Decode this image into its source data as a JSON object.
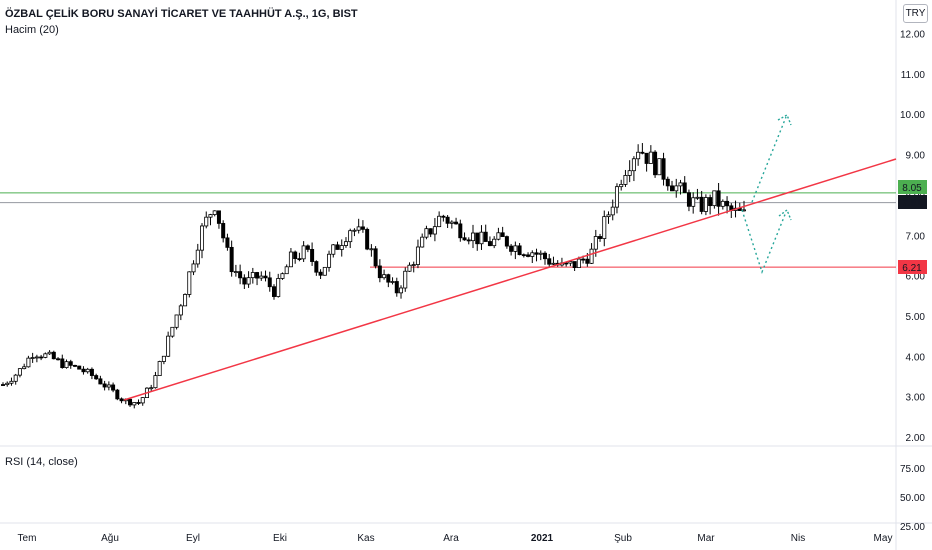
{
  "header": {
    "symbol_title": "ÖZBAL ÇELİK BORU SANAYİ TİCARET VE TAAHHÜT A.Ş., 1G, BIST",
    "indicator": "Hacim (20)"
  },
  "currency_badge": "TRY",
  "rsi_panel": {
    "label": "RSI (14, close)",
    "ticks": [
      "75.00",
      "50.00",
      "25.00"
    ]
  },
  "colors": {
    "up": "#ffffff",
    "down": "#000000",
    "candle_border": "#000000",
    "support_line": "#f23645",
    "resistance_line": "#4caf50",
    "projection": "#26a69a",
    "price_marker": "#131722"
  },
  "chart_data": {
    "type": "candlestick",
    "title": "ÖZBAL ÇELİK BORU SANAYİ TİCARET VE TAAHHÜT A.Ş., 1G, BIST",
    "y_ticks": [
      "12.00",
      "11.00",
      "10.00",
      "9.00",
      "8.00",
      "7.00",
      "6.00",
      "5.00",
      "4.00",
      "3.00",
      "2.00"
    ],
    "ylim": [
      2.0,
      12.5
    ],
    "x_ticks": [
      "Tem",
      "Ağu",
      "Eyl",
      "Eki",
      "Kas",
      "Ara",
      "2021",
      "Şub",
      "Mar",
      "Nis",
      "May"
    ],
    "price_labels": [
      "8.05",
      "7.81",
      "6.21"
    ],
    "levels": {
      "resistance": 8.05,
      "last": 7.81,
      "support": 6.21
    },
    "trendline": {
      "from": [
        "Ağu",
        2.85
      ],
      "to": [
        "Mar",
        7.8
      ]
    },
    "projection_up": [
      7.8,
      10.0
    ],
    "projection_down": [
      7.8,
      6.1,
      7.6
    ],
    "series_close_approx": [
      3.3,
      3.6,
      4.1,
      4.0,
      3.8,
      3.7,
      3.5,
      3.2,
      2.9,
      2.85,
      3.4,
      4.5,
      5.6,
      7.0,
      7.8,
      6.3,
      5.8,
      6.0,
      5.6,
      6.4,
      6.6,
      6.1,
      6.7,
      7.2,
      6.9,
      6.0,
      5.6,
      6.3,
      7.0,
      7.5,
      7.2,
      7.0,
      6.8,
      6.9,
      6.7,
      6.6,
      6.4,
      6.2,
      6.3,
      6.6,
      7.5,
      8.6,
      9.2,
      8.8,
      8.4,
      8.0,
      7.7,
      7.9,
      7.6,
      7.5
    ]
  }
}
